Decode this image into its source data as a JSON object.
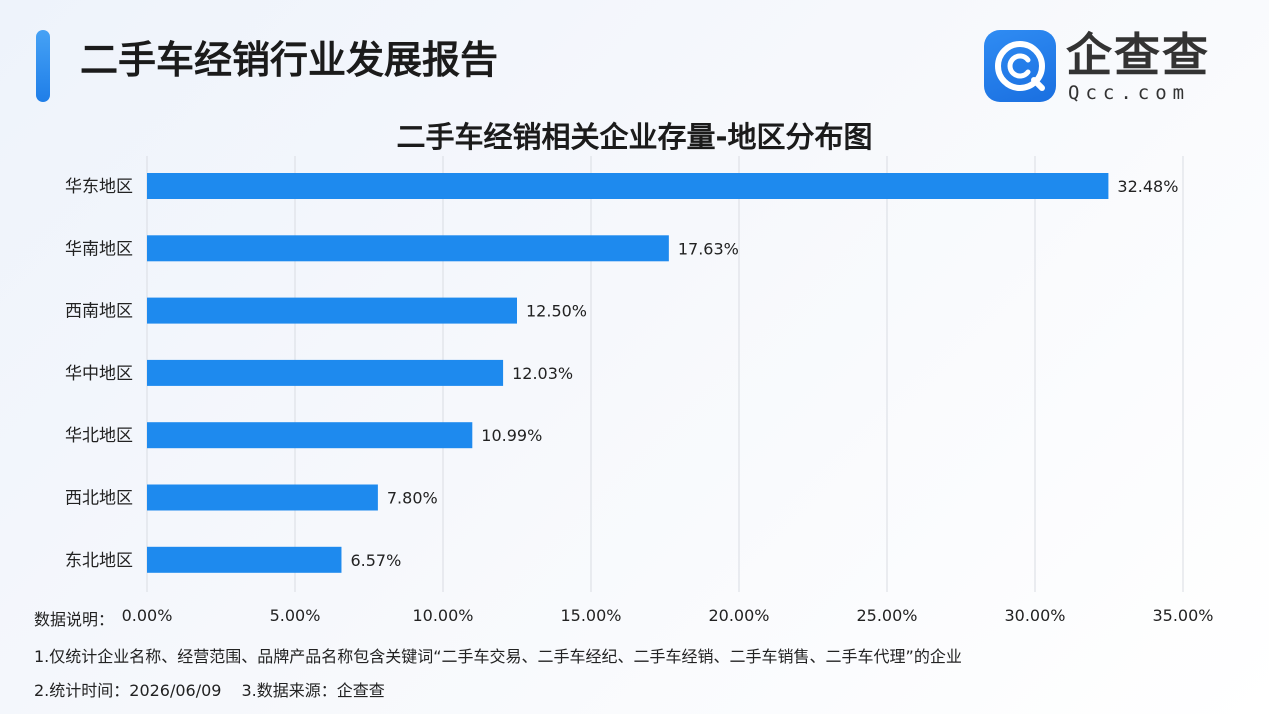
{
  "header": {
    "title": "二手车经销行业发展报告"
  },
  "logo": {
    "name": "企查查",
    "domain": "Qcc.com"
  },
  "colors": {
    "accent": "#1f7ee8",
    "bar": "#1e8aee",
    "gridline": "#d9dce2"
  },
  "chart_data": {
    "type": "bar",
    "orientation": "horizontal",
    "title": "二手车经销相关企业存量-地区分布图",
    "categories": [
      "华东地区",
      "华南地区",
      "西南地区",
      "华中地区",
      "华北地区",
      "西北地区",
      "东北地区"
    ],
    "values": [
      32.48,
      17.63,
      12.5,
      12.03,
      10.99,
      7.8,
      6.57
    ],
    "value_labels": [
      "32.48%",
      "17.63%",
      "12.50%",
      "12.03%",
      "10.99%",
      "7.80%",
      "6.57%"
    ],
    "xlim": [
      0,
      35
    ],
    "xticks": [
      0,
      5,
      10,
      15,
      20,
      25,
      30,
      35
    ],
    "xtick_labels": [
      "0.00%",
      "5.00%",
      "10.00%",
      "15.00%",
      "20.00%",
      "25.00%",
      "30.00%",
      "35.00%"
    ],
    "xlabel": "",
    "ylabel": "",
    "grid": "vertical"
  },
  "notes": {
    "heading": "数据说明：",
    "line1": "1.仅统计企业名称、经营范围、品牌产品名称包含关键词“二手车交易、二手车经纪、二手车经销、二手车销售、二手车代理”的企业",
    "line2": "2.统计时间：2026/06/09",
    "line3": "3.数据来源：企查查"
  }
}
